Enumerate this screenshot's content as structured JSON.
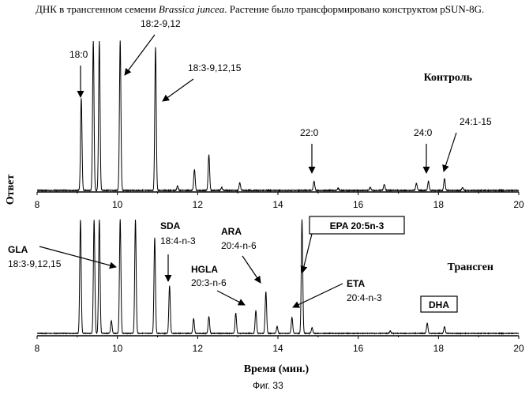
{
  "header": {
    "prefix": "ДНК в трансгенном семени",
    "species": "Brassica juncea",
    "suffix": ". Растение было трансформировано конструктом  pSUN-8G."
  },
  "figure_caption": "Фиг. 33",
  "chart_data": [
    {
      "type": "line",
      "title": "Контроль",
      "ylabel": "Ответ",
      "xlabel": "",
      "xlim": [
        8,
        20
      ],
      "x_ticks": [
        "8",
        "10",
        "12",
        "14",
        "16",
        "18",
        "20"
      ],
      "grid": false,
      "peaks": [
        {
          "x": 9.1,
          "height": 0.62
        },
        {
          "x": 9.4,
          "height": 1.0
        },
        {
          "x": 9.55,
          "height": 1.0
        },
        {
          "x": 10.07,
          "height": 1.0
        },
        {
          "x": 10.95,
          "height": 0.96
        },
        {
          "x": 11.5,
          "height": 0.03
        },
        {
          "x": 11.92,
          "height": 0.14
        },
        {
          "x": 12.28,
          "height": 0.24
        },
        {
          "x": 12.6,
          "height": 0.02
        },
        {
          "x": 13.05,
          "height": 0.05
        },
        {
          "x": 14.9,
          "height": 0.06
        },
        {
          "x": 15.5,
          "height": 0.015
        },
        {
          "x": 16.3,
          "height": 0.02
        },
        {
          "x": 16.65,
          "height": 0.04
        },
        {
          "x": 17.45,
          "height": 0.05
        },
        {
          "x": 17.75,
          "height": 0.06
        },
        {
          "x": 18.15,
          "height": 0.08
        },
        {
          "x": 18.6,
          "height": 0.02
        }
      ],
      "annotations": [
        {
          "label": "18:0"
        },
        {
          "label": "18:2-9,12"
        },
        {
          "label": "18:3-9,12,15"
        },
        {
          "label": "22:0"
        },
        {
          "label": "24:0"
        },
        {
          "label": "24:1-15"
        }
      ]
    },
    {
      "type": "line",
      "title": "Трансген",
      "ylabel": "",
      "xlabel": "Время (мин.)",
      "xlim": [
        8,
        20
      ],
      "x_ticks": [
        "8",
        "10",
        "12",
        "14",
        "16",
        "18",
        "20"
      ],
      "grid": false,
      "peaks": [
        {
          "x": 9.08,
          "height": 1.0
        },
        {
          "x": 9.42,
          "height": 1.0
        },
        {
          "x": 9.55,
          "height": 1.0
        },
        {
          "x": 9.85,
          "height": 0.11
        },
        {
          "x": 10.07,
          "height": 1.0
        },
        {
          "x": 10.45,
          "height": 1.0
        },
        {
          "x": 10.93,
          "height": 0.84
        },
        {
          "x": 11.3,
          "height": 0.42
        },
        {
          "x": 11.9,
          "height": 0.13
        },
        {
          "x": 12.28,
          "height": 0.15
        },
        {
          "x": 12.95,
          "height": 0.18
        },
        {
          "x": 13.45,
          "height": 0.2
        },
        {
          "x": 13.7,
          "height": 0.37
        },
        {
          "x": 13.98,
          "height": 0.06
        },
        {
          "x": 14.35,
          "height": 0.14
        },
        {
          "x": 14.6,
          "height": 1.0
        },
        {
          "x": 14.85,
          "height": 0.05
        },
        {
          "x": 16.8,
          "height": 0.02
        },
        {
          "x": 17.72,
          "height": 0.09
        },
        {
          "x": 18.15,
          "height": 0.06
        }
      ],
      "annotations": [
        {
          "name": "GLA",
          "sub": "18:3-9,12,15"
        },
        {
          "name": "SDA",
          "sub": "18:4-n-3"
        },
        {
          "name": "HGLA",
          "sub": "20:3-n-6"
        },
        {
          "name": "ARA",
          "sub": "20:4-n-6"
        },
        {
          "name": "EPA 20:5n-3",
          "boxed": true
        },
        {
          "name": "ETA",
          "sub": "20:4-n-3"
        },
        {
          "name": "DHA",
          "boxed": true
        }
      ]
    }
  ]
}
